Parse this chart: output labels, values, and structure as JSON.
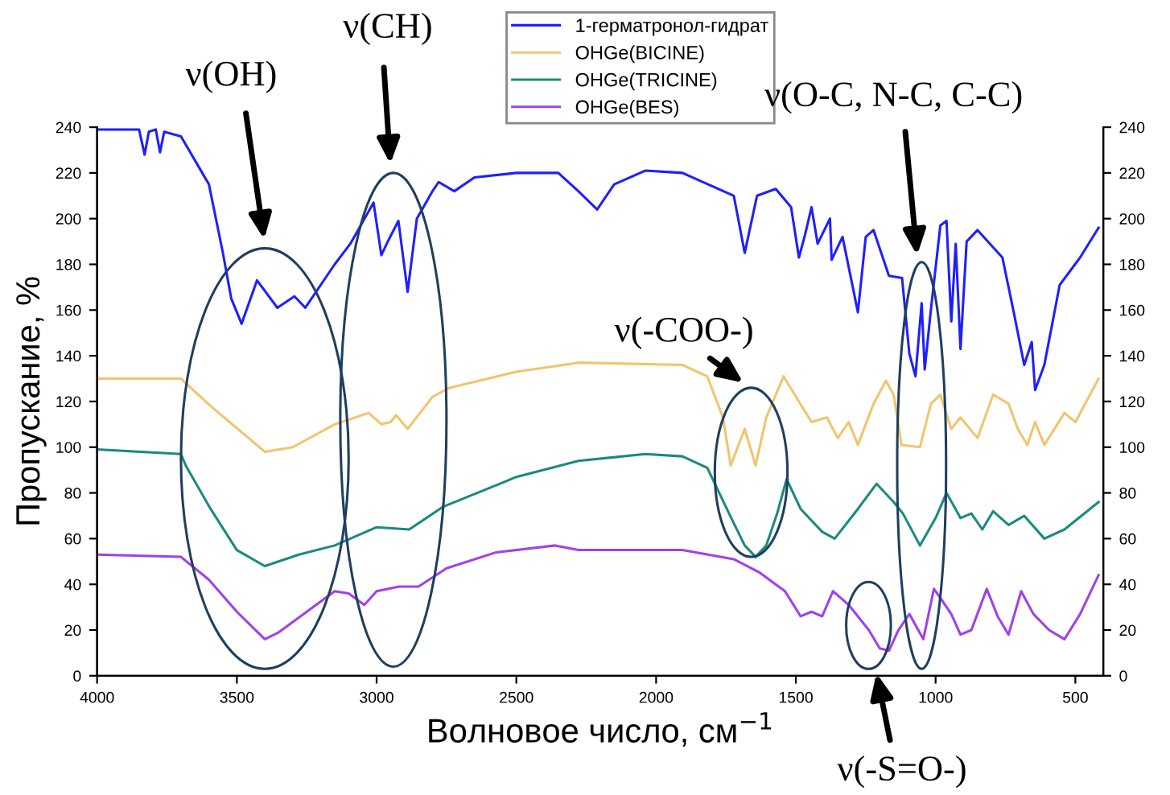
{
  "chart_data": {
    "type": "line",
    "xlabel": "Волновое число, см$^{−1}$",
    "ylabel": "Пропускание, %",
    "xlim": [
      4000,
      400
    ],
    "xticks": [
      4000,
      3500,
      3000,
      2500,
      2000,
      1500,
      1000,
      500
    ],
    "ylim": [
      0,
      240
    ],
    "yticks": [
      0,
      20,
      40,
      60,
      80,
      100,
      120,
      140,
      160,
      180,
      200,
      220,
      240
    ],
    "y2lim": [
      0,
      240
    ],
    "y2ticks": [
      0,
      20,
      40,
      60,
      80,
      100,
      120,
      140,
      160,
      180,
      200,
      220,
      240
    ],
    "legend": "top",
    "grid": false,
    "marker": "none",
    "line_style": "solid",
    "series": [
      {
        "name": "1-герматронол-гидрат",
        "color": "#1f1fff",
        "x": [
          4000,
          3850,
          3830,
          3815,
          3790,
          3775,
          3760,
          3700,
          3600,
          3550,
          3520,
          3483,
          3428,
          3355,
          3294,
          3255,
          3150,
          3094,
          3011,
          2983,
          2960,
          2922,
          2889,
          2856,
          2800,
          2778,
          2722,
          2650,
          2500,
          2350,
          2278,
          2211,
          2150,
          2039,
          1906,
          1722,
          1683,
          1639,
          1572,
          1517,
          1489,
          1467,
          1444,
          1422,
          1378,
          1372,
          1333,
          1278,
          1250,
          1222,
          1167,
          1120,
          1094,
          1072,
          1050,
          1039,
          1017,
          983,
          961,
          944,
          928,
          911,
          889,
          850,
          761,
          722,
          683,
          656,
          644,
          611,
          600,
          556,
          483,
          417
        ],
        "values": [
          239,
          239,
          228,
          238,
          239,
          229,
          238,
          236,
          215,
          185,
          165,
          154,
          173,
          161,
          166,
          161,
          180,
          189,
          207,
          184,
          190,
          199,
          168,
          200,
          212,
          216,
          212,
          218,
          220,
          220,
          212,
          204,
          215,
          221,
          220,
          210,
          185,
          210,
          213,
          205,
          183,
          193,
          205,
          189,
          200,
          182,
          192,
          159,
          192,
          195,
          175,
          174,
          141,
          131,
          163,
          134,
          160,
          197,
          199,
          155,
          189,
          143,
          190,
          195,
          183,
          160,
          136,
          146,
          125,
          136,
          143,
          171,
          183,
          196
        ]
      },
      {
        "name": "OHGe(BICINE)",
        "color": "#f2c46d",
        "x": [
          4000,
          3700,
          3594,
          3400,
          3300,
          3150,
          3028,
          2983,
          2950,
          2930,
          2889,
          2800,
          2739,
          2500,
          2278,
          1906,
          1817,
          1761,
          1733,
          1683,
          1644,
          1606,
          1544,
          1489,
          1444,
          1389,
          1350,
          1311,
          1278,
          1222,
          1178,
          1150,
          1122,
          1056,
          1017,
          983,
          944,
          911,
          850,
          794,
          739,
          706,
          672,
          644,
          611,
          539,
          500,
          417
        ],
        "values": [
          130,
          130,
          118,
          98,
          100,
          110,
          115,
          110,
          111,
          114,
          108,
          122,
          126,
          133,
          137,
          136,
          131,
          113,
          92,
          108,
          92,
          113,
          131,
          120,
          111,
          113,
          104,
          111,
          101,
          119,
          129,
          123,
          101,
          100,
          119,
          123,
          108,
          113,
          104,
          123,
          119,
          108,
          101,
          111,
          101,
          115,
          111,
          130
        ]
      },
      {
        "name": "OHGe(TRICINE)",
        "color": "#1a8a80",
        "x": [
          4000,
          3700,
          3683,
          3594,
          3500,
          3400,
          3278,
          3150,
          3000,
          2883,
          2761,
          2539,
          2500,
          2278,
          2039,
          1906,
          1817,
          1739,
          1683,
          1644,
          1606,
          1567,
          1533,
          1483,
          1406,
          1361,
          1278,
          1211,
          1150,
          1117,
          1056,
          1000,
          961,
          911,
          872,
          833,
          794,
          739,
          683,
          611,
          539,
          417
        ],
        "values": [
          99,
          97,
          92,
          73,
          55,
          48,
          53,
          57,
          65,
          64,
          74,
          85,
          87,
          94,
          97,
          96,
          91,
          71,
          57,
          52,
          57,
          71,
          86,
          73,
          63,
          60,
          73,
          84,
          76,
          71,
          57,
          69,
          80,
          69,
          71,
          64,
          72,
          66,
          70,
          60,
          64,
          76
        ]
      },
      {
        "name": "OHGe(BES)",
        "color": "#a040f0",
        "x": [
          4000,
          3700,
          3600,
          3500,
          3400,
          3350,
          3250,
          3150,
          3100,
          3044,
          3000,
          2920,
          2850,
          2750,
          2572,
          2361,
          2278,
          1906,
          1722,
          1628,
          1539,
          1483,
          1444,
          1406,
          1367,
          1311,
          1239,
          1200,
          1167,
          1133,
          1094,
          1044,
          1006,
          983,
          944,
          911,
          872,
          817,
          778,
          739,
          694,
          650,
          594,
          539,
          483,
          417
        ],
        "values": [
          53,
          52,
          42,
          28,
          16,
          19,
          28,
          37,
          36,
          31,
          37,
          39,
          39,
          47,
          54,
          57,
          55,
          55,
          51,
          45,
          37,
          26,
          28,
          26,
          37,
          31,
          20,
          12,
          11,
          20,
          27,
          16,
          38,
          34,
          27,
          18,
          20,
          38,
          26,
          18,
          37,
          27,
          20,
          16,
          27,
          44
        ]
      }
    ],
    "annotations": [
      "ν(OH)",
      "ν(CH)",
      "ν(-COO-)",
      "ν(O-C, N-C, C-C)",
      "ν(-S=O-)"
    ]
  }
}
